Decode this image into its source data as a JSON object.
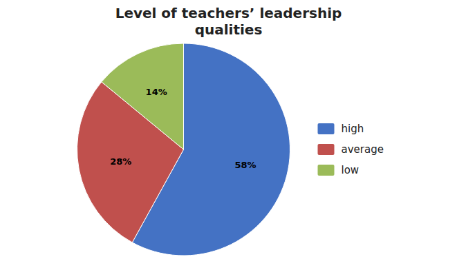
{
  "chart_data": {
    "type": "pie",
    "title": "Level of teachers’ leadership\nqualities",
    "categories": [
      "high",
      "average",
      "low"
    ],
    "values": [
      58,
      28,
      14
    ],
    "value_labels": [
      "58%",
      "28%",
      "14%"
    ],
    "colors": [
      "#4472C4",
      "#C0504D",
      "#9BBB59"
    ],
    "data_labels": true,
    "legend": "right"
  }
}
